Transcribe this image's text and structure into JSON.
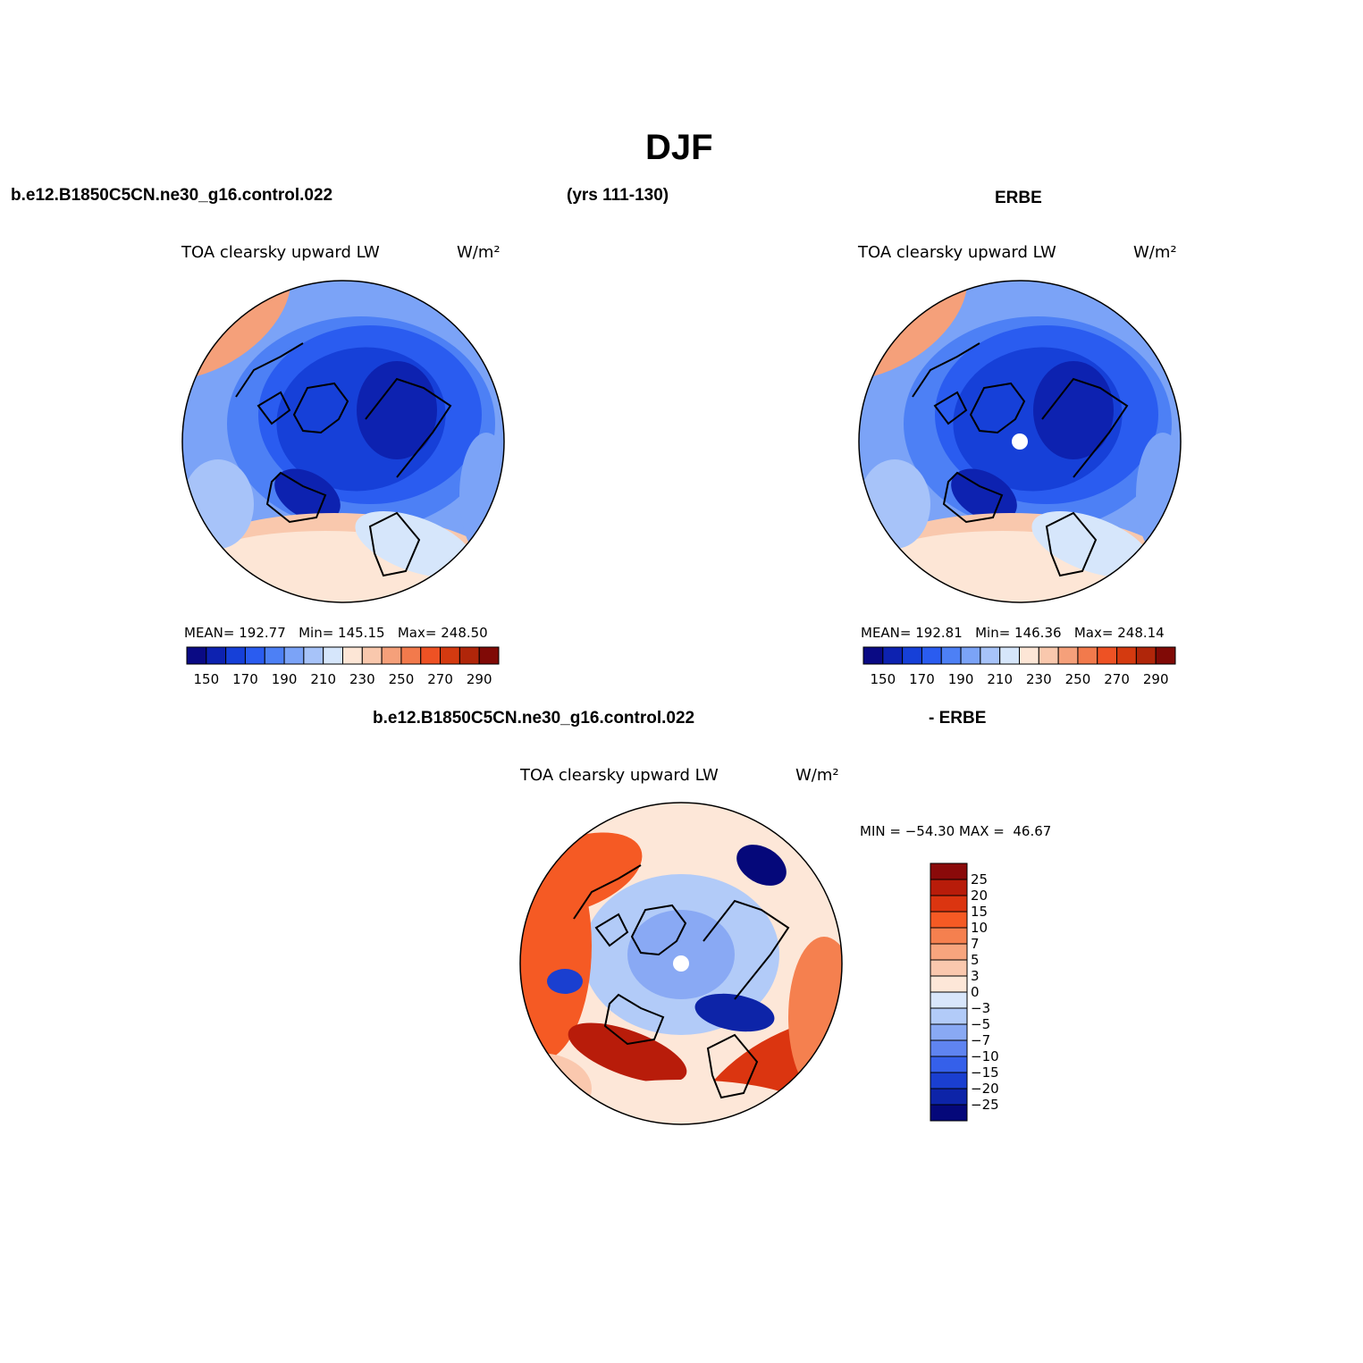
{
  "figure_title": "DJF",
  "header": {
    "case_name": "b.e12.B1850C5CN.ne30_g16.control.022",
    "years": "(yrs 111-130)",
    "obs_name": "ERBE",
    "diff_case": "b.e12.B1850C5CN.ne30_g16.control.022",
    "diff_obs": "- ERBE"
  },
  "colors": {
    "full_scale": [
      "#0a0a84",
      "#0d22b0",
      "#1640d8",
      "#2a5cf0",
      "#4d80f5",
      "#7ba3f7",
      "#a7c3f9",
      "#d6e6fb",
      "#fde6d6",
      "#f9c8ad",
      "#f5a07a",
      "#f27a4c",
      "#ee5224",
      "#d43a10",
      "#b0260a",
      "#800a06"
    ],
    "diff_scale": [
      "#8a0a0a",
      "#b81c0a",
      "#db3510",
      "#f55a24",
      "#f5804f",
      "#f7a57e",
      "#fac8ae",
      "#fde7d8",
      "#d8e6fb",
      "#b2cbf8",
      "#89a9f4",
      "#5f84f1",
      "#3560ea",
      "#1a3fd0",
      "#0d24a8",
      "#05087a"
    ],
    "mask": "#ffffff",
    "outline": "#000000"
  },
  "chart_data": [
    {
      "type": "heatmap",
      "name": "model",
      "projection": "north polar stereographic",
      "title": "TOA clearsky upward LW",
      "units": "W/m²",
      "stats": {
        "mean_label": "MEAN=",
        "mean": "192.77",
        "min_label": "Min=",
        "min": "145.15",
        "max_label": "Max=",
        "max": "248.50"
      },
      "colorbar": {
        "levels": [
          150,
          160,
          170,
          180,
          190,
          200,
          210,
          220,
          230,
          240,
          250,
          260,
          270,
          280,
          290
        ],
        "tick_labels": [
          "150",
          "170",
          "190",
          "210",
          "230",
          "250",
          "270",
          "290"
        ]
      }
    },
    {
      "type": "heatmap",
      "name": "obs",
      "projection": "north polar stereographic",
      "title": "TOA clearsky upward LW",
      "units": "W/m²",
      "stats": {
        "mean_label": "MEAN=",
        "mean": "192.81",
        "min_label": "Min=",
        "min": "146.36",
        "max_label": "Max=",
        "max": "248.14"
      },
      "colorbar": {
        "levels": [
          150,
          160,
          170,
          180,
          190,
          200,
          210,
          220,
          230,
          240,
          250,
          260,
          270,
          280,
          290
        ],
        "tick_labels": [
          "150",
          "170",
          "190",
          "210",
          "230",
          "250",
          "270",
          "290"
        ]
      }
    },
    {
      "type": "heatmap",
      "name": "difference",
      "projection": "north polar stereographic",
      "title": "TOA clearsky upward LW",
      "units": "W/m²",
      "stats": {
        "min_label": "MIN =",
        "min": "−54.30",
        "max_label": "MAX =",
        "max": "46.67"
      },
      "colorbar": {
        "orientation": "vertical",
        "levels": [
          25,
          20,
          15,
          10,
          7,
          5,
          3,
          0,
          -3,
          -5,
          -7,
          -10,
          -15,
          -20,
          -25
        ],
        "tick_labels": [
          "25",
          "20",
          "15",
          "10",
          "7",
          "5",
          "3",
          "0",
          "−3",
          "−5",
          "−7",
          "−10",
          "−15",
          "−20",
          "−25"
        ]
      }
    }
  ]
}
